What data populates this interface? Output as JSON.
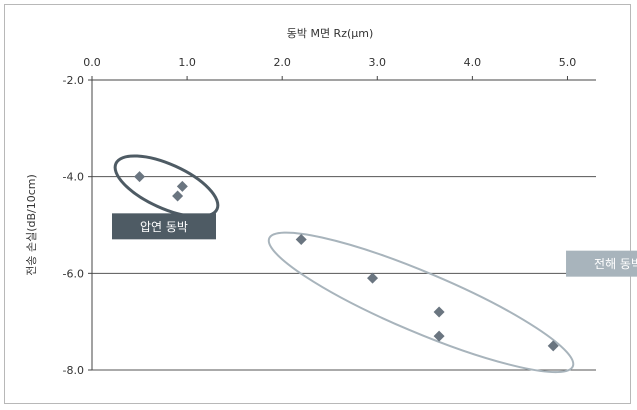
{
  "chart_data": {
    "type": "scatter",
    "xlabel": "동박 M면 Rz(µm)",
    "ylabel": "전송 손실(dB/10cm)",
    "xlim": [
      0.0,
      5.3
    ],
    "ylim": [
      -8.0,
      -2.0
    ],
    "x_axis_position": "top",
    "x_ticks": [
      0.0,
      1.0,
      2.0,
      3.0,
      4.0,
      5.0
    ],
    "x_tick_labels": [
      "0.0",
      "1.0",
      "2.0",
      "3.0",
      "4.0",
      "5.0"
    ],
    "y_ticks": [
      -2.0,
      -4.0,
      -6.0,
      -8.0
    ],
    "y_tick_labels": [
      "-2.0",
      "-4.0",
      "-6.0",
      "-8.0"
    ],
    "grid": "horizontal",
    "marker": "diamond",
    "marker_color": "#6a7580",
    "series": [
      {
        "label": "압연 동박",
        "label_color": "#4e5b64",
        "ellipse_color": "#4e5b64",
        "points": [
          {
            "x": 0.5,
            "y": -4.0
          },
          {
            "x": 0.95,
            "y": -4.2
          },
          {
            "x": 0.9,
            "y": -4.4
          }
        ]
      },
      {
        "label": "전해 동박",
        "label_color": "#a8b4bc",
        "ellipse_color": "#a8b4bc",
        "points": [
          {
            "x": 2.2,
            "y": -5.3
          },
          {
            "x": 2.95,
            "y": -6.1
          },
          {
            "x": 3.65,
            "y": -6.8
          },
          {
            "x": 3.65,
            "y": -7.3
          },
          {
            "x": 4.85,
            "y": -7.5
          }
        ]
      }
    ]
  }
}
